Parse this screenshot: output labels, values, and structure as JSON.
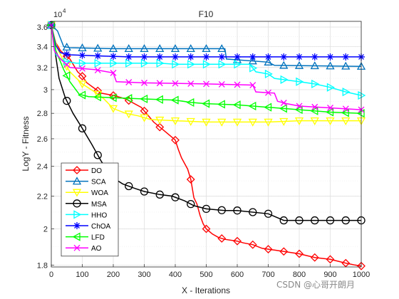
{
  "chart_data": {
    "type": "line",
    "title": "F10",
    "xlabel": "X - Iterations",
    "ylabel": "LogY - Fitness",
    "y_exponent_label": "10",
    "y_exponent_power": "4",
    "xlim": [
      0,
      1000
    ],
    "ylim": [
      17900,
      36600
    ],
    "yscale": "log",
    "grid": true,
    "minor_grid": true,
    "legend_position": "bottom-left",
    "x_ticks": [
      0,
      100,
      200,
      300,
      400,
      500,
      600,
      700,
      800,
      900,
      1000
    ],
    "x_tick_labels": [
      "0",
      "100",
      "200",
      "300",
      "400",
      "500",
      "600",
      "700",
      "800",
      "900",
      "1000"
    ],
    "y_ticks": [
      18000,
      20000,
      22000,
      24000,
      26000,
      28000,
      30000,
      32000,
      34000,
      36000
    ],
    "y_tick_labels": [
      "1.8",
      "2",
      "2.2",
      "2.4",
      "2.6",
      "2.8",
      "3",
      "3.2",
      "3.4",
      "3.6"
    ],
    "series": [
      {
        "name": "DO",
        "color": "#ff0000",
        "marker": "diamond",
        "points": [
          [
            0,
            36200
          ],
          [
            5,
            34900
          ],
          [
            30,
            33600
          ],
          [
            60,
            32800
          ],
          [
            85,
            31600
          ],
          [
            100,
            31200
          ],
          [
            115,
            30600
          ],
          [
            145,
            30000
          ],
          [
            160,
            29700
          ],
          [
            200,
            29500
          ],
          [
            240,
            29200
          ],
          [
            290,
            28500
          ],
          [
            310,
            27900
          ],
          [
            330,
            27300
          ],
          [
            360,
            26700
          ],
          [
            390,
            26100
          ],
          [
            400,
            25900
          ],
          [
            410,
            25200
          ],
          [
            420,
            24600
          ],
          [
            430,
            24200
          ],
          [
            440,
            23800
          ],
          [
            450,
            23100
          ],
          [
            460,
            21900
          ],
          [
            470,
            21500
          ],
          [
            480,
            20800
          ],
          [
            490,
            20300
          ],
          [
            500,
            20000
          ],
          [
            520,
            19700
          ],
          [
            540,
            19500
          ],
          [
            560,
            19400
          ],
          [
            600,
            19300
          ],
          [
            620,
            19200
          ],
          [
            650,
            19100
          ],
          [
            680,
            18900
          ],
          [
            720,
            18800
          ],
          [
            760,
            18700
          ],
          [
            800,
            18600
          ],
          [
            850,
            18400
          ],
          [
            900,
            18300
          ],
          [
            950,
            18100
          ],
          [
            980,
            18000
          ],
          [
            1000,
            17950
          ]
        ],
        "marker_x": [
          0,
          50,
          100,
          150,
          200,
          250,
          300,
          350,
          400,
          450,
          500,
          550,
          600,
          650,
          700,
          750,
          800,
          850,
          900,
          950,
          1000
        ]
      },
      {
        "name": "SCA",
        "color": "#0072bd",
        "marker": "triangle-up",
        "points": [
          [
            0,
            36200
          ],
          [
            20,
            35600
          ],
          [
            40,
            34000
          ],
          [
            60,
            33900
          ],
          [
            200,
            33800
          ],
          [
            560,
            33800
          ],
          [
            565,
            32800
          ],
          [
            700,
            32500
          ],
          [
            720,
            32200
          ],
          [
            1000,
            32100
          ]
        ],
        "marker_x": [
          0,
          50,
          100,
          150,
          200,
          250,
          300,
          350,
          400,
          450,
          500,
          550,
          600,
          650,
          700,
          750,
          800,
          850,
          900,
          950,
          1000
        ]
      },
      {
        "name": "WOA",
        "color": "#ffff00",
        "marker": "triangle-down",
        "points": [
          [
            0,
            36200
          ],
          [
            20,
            33800
          ],
          [
            40,
            32600
          ],
          [
            60,
            31600
          ],
          [
            100,
            30500
          ],
          [
            140,
            29800
          ],
          [
            170,
            29200
          ],
          [
            200,
            28400
          ],
          [
            240,
            28000
          ],
          [
            280,
            27800
          ],
          [
            320,
            27500
          ],
          [
            400,
            27400
          ],
          [
            500,
            27300
          ],
          [
            600,
            27300
          ],
          [
            700,
            27300
          ],
          [
            800,
            27400
          ],
          [
            1000,
            27400
          ]
        ],
        "marker_x": [
          0,
          50,
          100,
          150,
          200,
          250,
          300,
          350,
          400,
          450,
          500,
          550,
          600,
          650,
          700,
          750,
          800,
          850,
          900,
          950,
          1000
        ]
      },
      {
        "name": "MSA",
        "color": "#000000",
        "marker": "circle",
        "points": [
          [
            0,
            36200
          ],
          [
            10,
            34000
          ],
          [
            25,
            31000
          ],
          [
            45,
            29300
          ],
          [
            70,
            28000
          ],
          [
            100,
            26800
          ],
          [
            130,
            25600
          ],
          [
            160,
            24400
          ],
          [
            180,
            23700
          ],
          [
            200,
            23200
          ],
          [
            230,
            22800
          ],
          [
            270,
            22500
          ],
          [
            300,
            22300
          ],
          [
            350,
            22100
          ],
          [
            390,
            22000
          ],
          [
            430,
            21700
          ],
          [
            460,
            21400
          ],
          [
            500,
            21200
          ],
          [
            560,
            21100
          ],
          [
            600,
            21100
          ],
          [
            700,
            20900
          ],
          [
            750,
            20500
          ],
          [
            800,
            20500
          ],
          [
            1000,
            20500
          ]
        ],
        "marker_x": [
          0,
          50,
          100,
          150,
          200,
          250,
          300,
          350,
          400,
          450,
          500,
          550,
          600,
          650,
          700,
          750,
          800,
          850,
          900,
          950,
          1000
        ]
      },
      {
        "name": "HHO",
        "color": "#00ffff",
        "marker": "triangle-right",
        "points": [
          [
            0,
            36200
          ],
          [
            15,
            33200
          ],
          [
            40,
            32600
          ],
          [
            80,
            32400
          ],
          [
            200,
            32400
          ],
          [
            350,
            32400
          ],
          [
            400,
            32300
          ],
          [
            640,
            32300
          ],
          [
            660,
            31600
          ],
          [
            700,
            31400
          ],
          [
            720,
            31000
          ],
          [
            800,
            30700
          ],
          [
            850,
            30500
          ],
          [
            900,
            30200
          ],
          [
            950,
            29800
          ],
          [
            1000,
            29500
          ]
        ],
        "marker_x": [
          0,
          50,
          100,
          150,
          200,
          250,
          300,
          350,
          400,
          450,
          500,
          550,
          600,
          650,
          700,
          750,
          800,
          850,
          900,
          950,
          1000
        ]
      },
      {
        "name": "ChOA",
        "color": "#0000ff",
        "marker": "asterisk",
        "points": [
          [
            0,
            36200
          ],
          [
            15,
            34100
          ],
          [
            30,
            33400
          ],
          [
            60,
            33200
          ],
          [
            150,
            33100
          ],
          [
            250,
            33000
          ],
          [
            600,
            33000
          ],
          [
            1000,
            33000
          ]
        ],
        "marker_x": [
          0,
          50,
          100,
          150,
          200,
          250,
          300,
          350,
          400,
          450,
          500,
          550,
          600,
          650,
          700,
          750,
          800,
          850,
          900,
          950,
          1000
        ]
      },
      {
        "name": "LFD",
        "color": "#00ff00",
        "marker": "triangle-left",
        "points": [
          [
            0,
            36200
          ],
          [
            15,
            33600
          ],
          [
            40,
            31800
          ],
          [
            60,
            30700
          ],
          [
            90,
            29600
          ],
          [
            120,
            29400
          ],
          [
            200,
            29300
          ],
          [
            300,
            29200
          ],
          [
            400,
            29100
          ],
          [
            450,
            28900
          ],
          [
            500,
            28800
          ],
          [
            600,
            28700
          ],
          [
            700,
            28500
          ],
          [
            800,
            28300
          ],
          [
            900,
            28100
          ],
          [
            1000,
            28000
          ]
        ],
        "marker_x": [
          0,
          50,
          100,
          150,
          200,
          250,
          300,
          350,
          400,
          450,
          500,
          550,
          600,
          650,
          700,
          750,
          800,
          850,
          900,
          950,
          1000
        ]
      },
      {
        "name": "AO",
        "color": "#ff00ff",
        "marker": "x",
        "points": [
          [
            0,
            36200
          ],
          [
            10,
            33600
          ],
          [
            30,
            32800
          ],
          [
            60,
            32000
          ],
          [
            140,
            31800
          ],
          [
            200,
            31500
          ],
          [
            210,
            30700
          ],
          [
            300,
            30600
          ],
          [
            500,
            30500
          ],
          [
            650,
            30400
          ],
          [
            660,
            29800
          ],
          [
            720,
            29700
          ],
          [
            730,
            29000
          ],
          [
            760,
            28800
          ],
          [
            800,
            28600
          ],
          [
            1000,
            28300
          ]
        ],
        "marker_x": [
          0,
          50,
          100,
          150,
          200,
          250,
          300,
          350,
          400,
          450,
          500,
          550,
          600,
          650,
          700,
          750,
          800,
          850,
          900,
          950,
          1000
        ]
      }
    ]
  },
  "colors": {
    "axes": "#262626",
    "grid": "#dcdcdc",
    "background": "#ffffff"
  },
  "watermark": "CSDN @心哥开朗月"
}
